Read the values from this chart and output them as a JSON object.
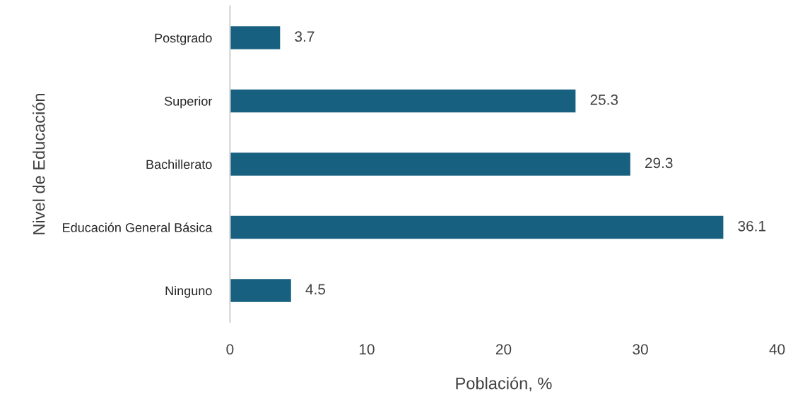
{
  "chart_data": {
    "type": "bar",
    "orientation": "horizontal",
    "categories": [
      "Postgrado",
      "Superior",
      "Bachillerato",
      "Educación General Básica",
      "Ninguno"
    ],
    "values": [
      3.7,
      25.3,
      29.3,
      36.1,
      4.5
    ],
    "color": "#17607f",
    "xlabel": "Población, %",
    "ylabel": "Nivel de Educación",
    "xlim": [
      0,
      40
    ],
    "xticks": [
      0,
      10,
      20,
      30,
      40
    ],
    "data_labels": true,
    "grid": false,
    "legend": false
  }
}
